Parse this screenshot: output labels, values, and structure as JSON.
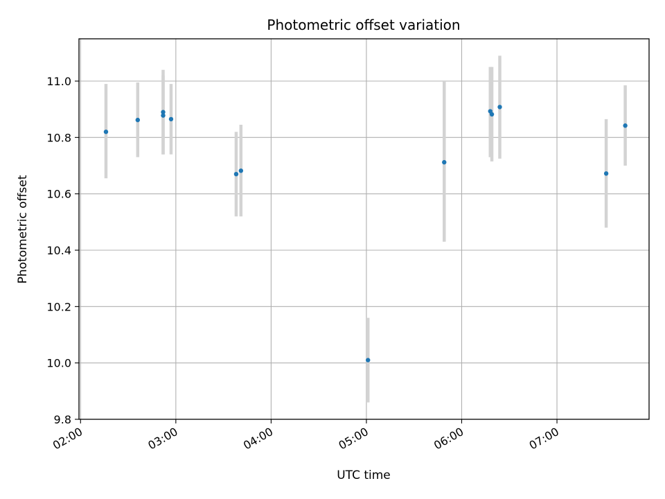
{
  "chart_data": {
    "type": "scatter",
    "title": "Photometric offset variation",
    "xlabel": "UTC time",
    "ylabel": "Photometric offset",
    "x_ticks": [
      "02:00",
      "03:00",
      "04:00",
      "05:00",
      "06:00",
      "07:00"
    ],
    "x_tick_values": [
      "02:00",
      "03:00",
      "04:00",
      "05:00",
      "06:00",
      "07:00"
    ],
    "xlim": [
      "01:59",
      "07:58"
    ],
    "y_ticks": [
      "9.8",
      "10.0",
      "10.2",
      "10.4",
      "10.6",
      "10.8",
      "11.0"
    ],
    "y_tick_values": [
      9.8,
      10.0,
      10.2,
      10.4,
      10.6,
      10.8,
      11.0
    ],
    "ylim": [
      9.8,
      11.15
    ],
    "grid": true,
    "point_color": "#1f77b4",
    "errorbar_color": "#d3d3d3",
    "points": [
      {
        "x": "02:16",
        "y": 10.82,
        "ymin": 10.655,
        "ymax": 10.99
      },
      {
        "x": "02:36",
        "y": 10.862,
        "ymin": 10.73,
        "ymax": 10.995
      },
      {
        "x": "02:52",
        "y": 10.89,
        "ymin": 10.74,
        "ymax": 11.04
      },
      {
        "x": "02:52",
        "y": 10.878,
        "ymin": 10.74,
        "ymax": 11.02
      },
      {
        "x": "02:57",
        "y": 10.865,
        "ymin": 10.74,
        "ymax": 10.99
      },
      {
        "x": "03:38",
        "y": 10.67,
        "ymin": 10.52,
        "ymax": 10.82
      },
      {
        "x": "03:41",
        "y": 10.682,
        "ymin": 10.52,
        "ymax": 10.845
      },
      {
        "x": "05:01",
        "y": 10.01,
        "ymin": 9.86,
        "ymax": 10.16
      },
      {
        "x": "05:49",
        "y": 10.712,
        "ymin": 10.43,
        "ymax": 11.0
      },
      {
        "x": "06:18",
        "y": 10.893,
        "ymin": 10.73,
        "ymax": 11.05
      },
      {
        "x": "06:19",
        "y": 10.882,
        "ymin": 10.715,
        "ymax": 11.05
      },
      {
        "x": "06:24",
        "y": 10.908,
        "ymin": 10.725,
        "ymax": 11.09
      },
      {
        "x": "07:31",
        "y": 10.672,
        "ymin": 10.48,
        "ymax": 10.865
      },
      {
        "x": "07:43",
        "y": 10.842,
        "ymin": 10.7,
        "ymax": 10.985
      }
    ]
  }
}
